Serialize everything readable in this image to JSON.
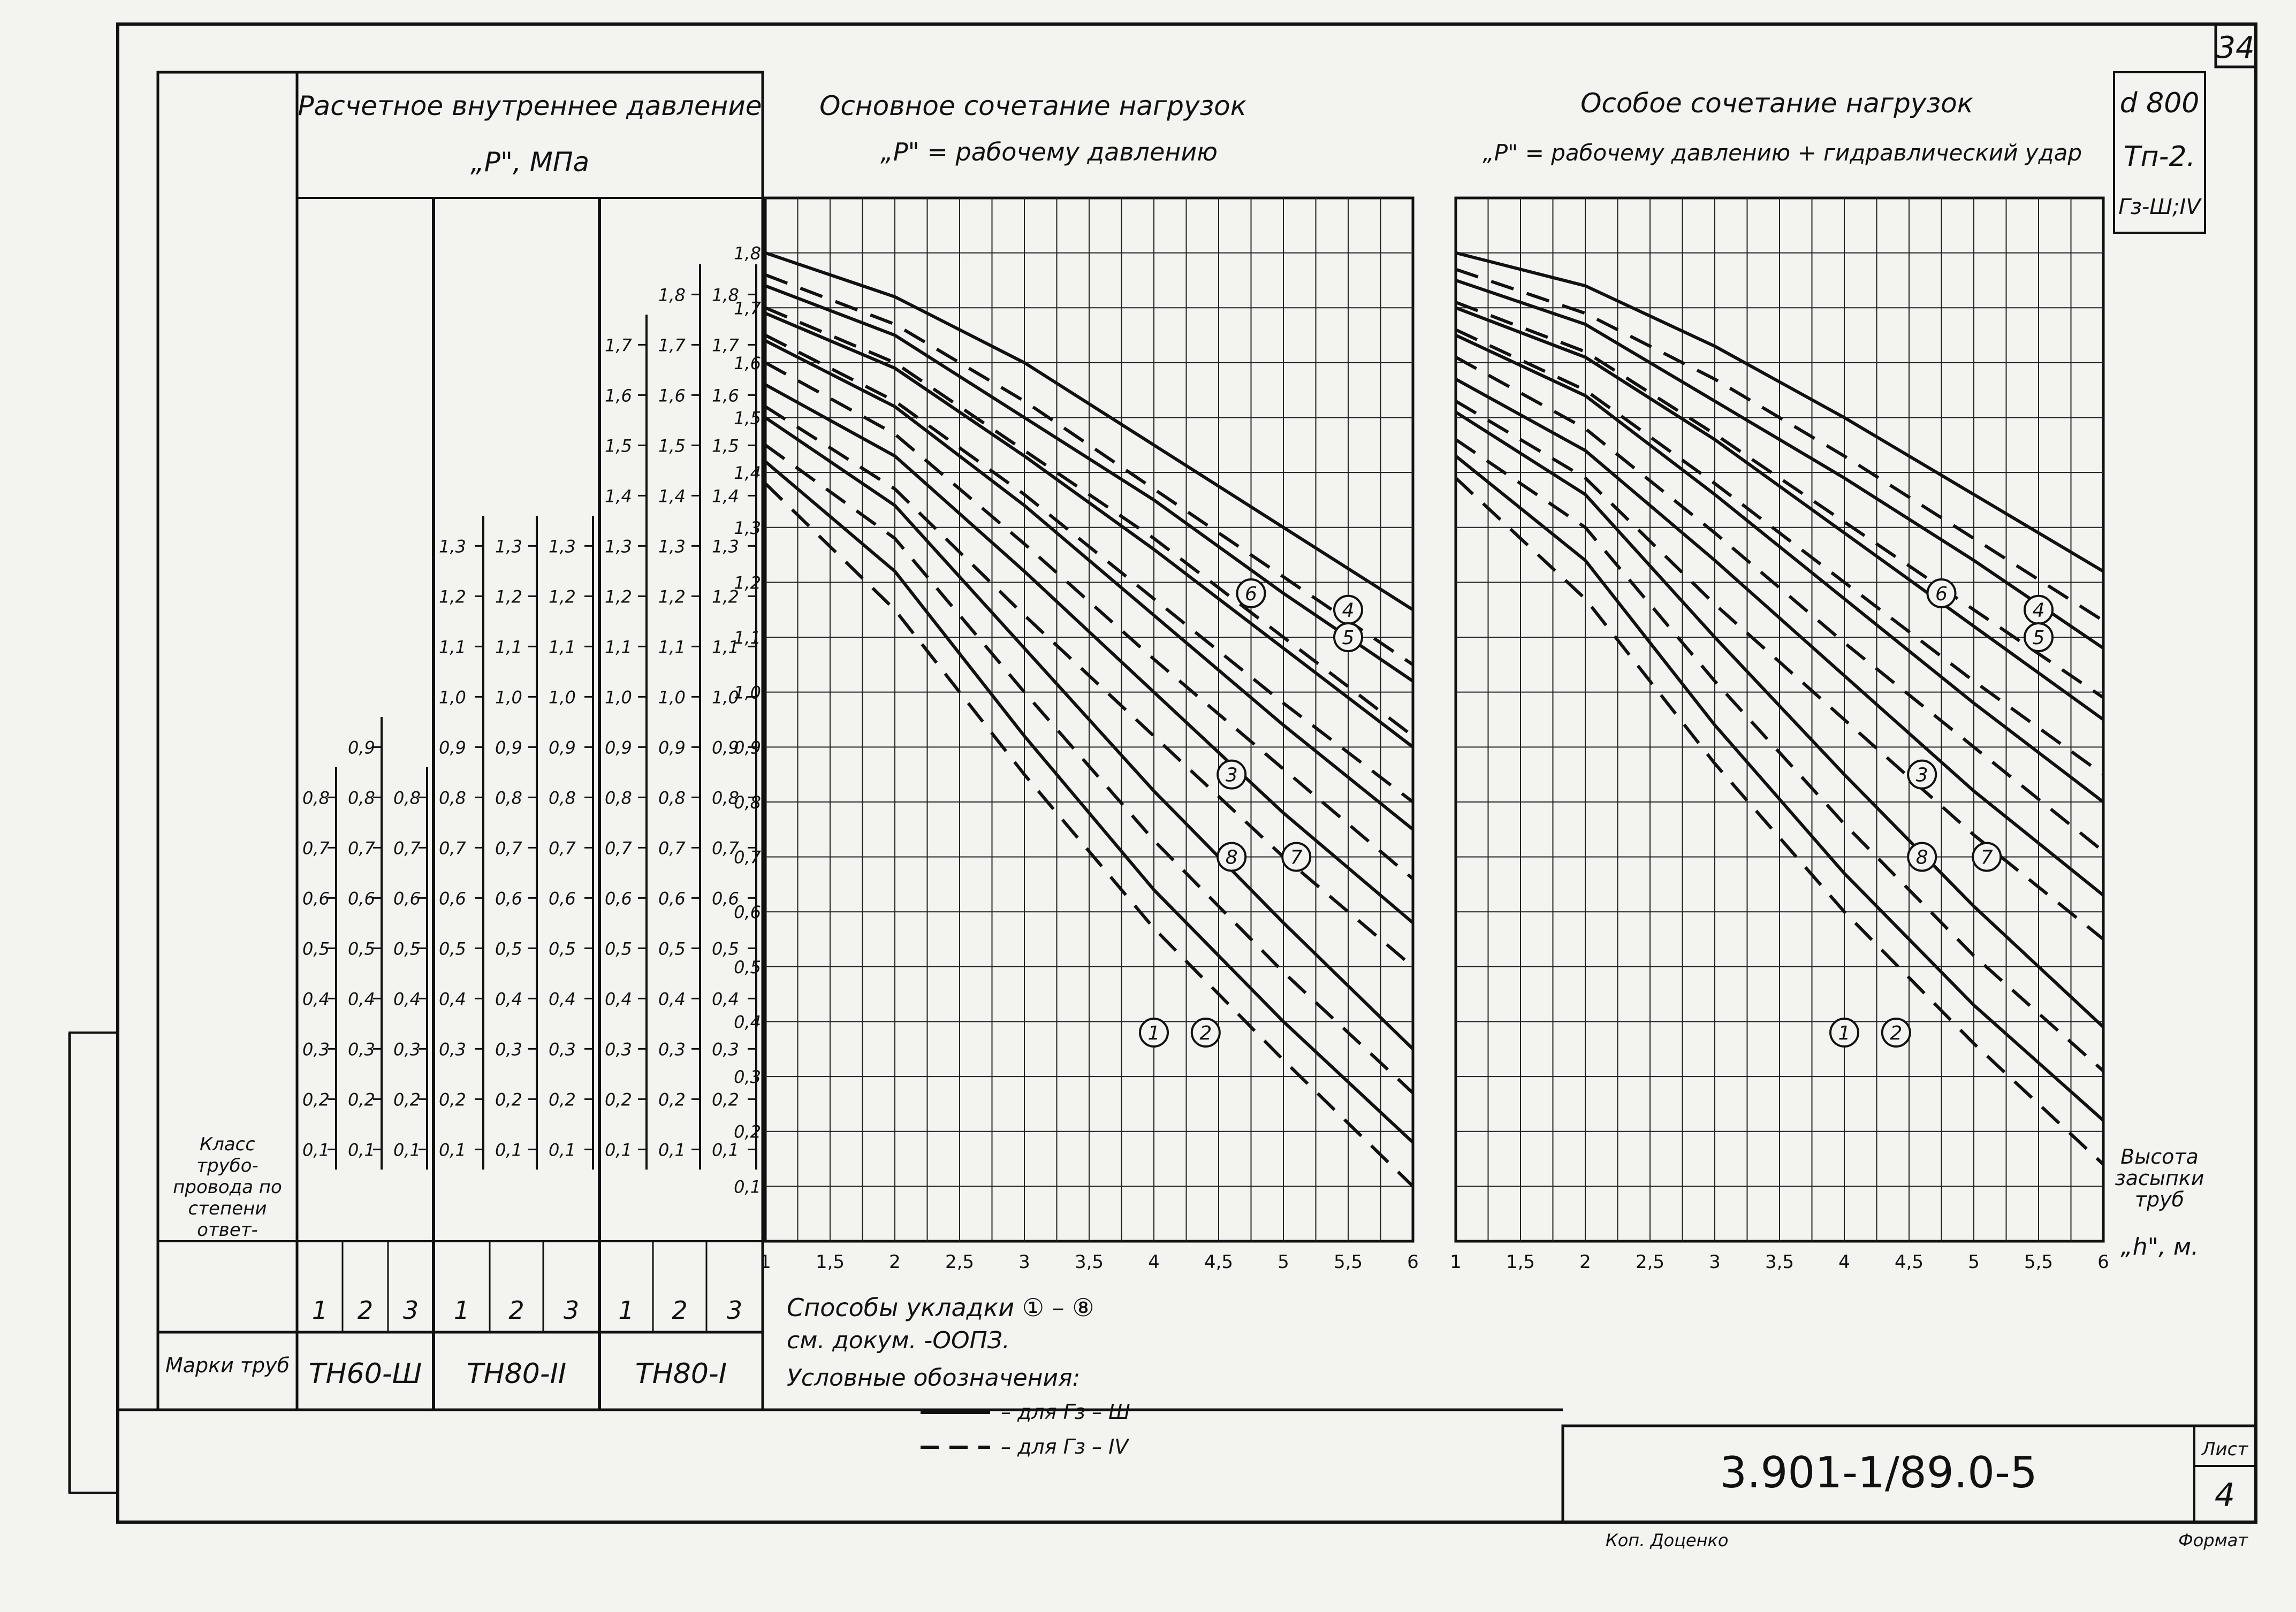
{
  "sheet_number": "34",
  "stamp": {
    "code": "3.901-1/89.0-5",
    "list_label": "Лист",
    "list_number": "4",
    "copy_label": "Коп. Доценко",
    "format_label": "Формат"
  },
  "marks": {
    "diameter": "d 800",
    "tip": "Тп-2.",
    "grunt": "Гз-Ш;IV"
  },
  "pressure_header": {
    "title": "Расчетное внутреннее давление",
    "subtitle": "„Р\", МПа"
  },
  "row_label_class": "Класс трубо-провода по степени ответ-ствен-ности",
  "row_label_marks": "Марки труб",
  "class_numbers": [
    "1",
    "2",
    "3",
    "1",
    "2",
    "3",
    "1",
    "2",
    "3"
  ],
  "pipe_marks": [
    "ТН60-Ш",
    "ТН80-II",
    "ТН80-I"
  ],
  "pressure_scales": [
    {
      "top": 0.8,
      "step": 0.1,
      "count": 8
    },
    {
      "top": 0.9,
      "step": 0.1,
      "count": 9
    },
    {
      "top": 0.8,
      "step": 0.1,
      "count": 8
    },
    {
      "top": 1.3,
      "step": 0.1,
      "count": 13
    },
    {
      "top": 1.3,
      "step": 0.1,
      "count": 13
    },
    {
      "top": 1.3,
      "step": 0.1,
      "count": 13
    },
    {
      "top": 1.7,
      "step": 0.1,
      "count": 17
    },
    {
      "top": 1.8,
      "step": 0.1,
      "count": 18
    },
    {
      "top": 1.8,
      "step": 0.1,
      "count": 18
    }
  ],
  "legend": {
    "line1": "Способы укладки ① – ⑧",
    "line2": "см. докум. -ООПЗ.",
    "line3": "Условные обозначения:",
    "solid_label": "– для Гз – Ш",
    "dashed_label": "– для Гз – IV"
  },
  "x_axis_label": "Высота засыпки труб „h\", м.",
  "chart_data": [
    {
      "type": "line",
      "title": "Основное сочетание нагрузок",
      "subtitle": "„Р\" = рабочему давлению",
      "xlabel": "Высота засыпки труб „h\", м.",
      "xlim": [
        1,
        6
      ],
      "ylim": [
        0,
        1.9
      ],
      "xticks": [
        "1",
        "1,5",
        "2",
        "2,5",
        "3",
        "3,5",
        "4",
        "4,5",
        "5",
        "5,5",
        "6"
      ],
      "yticks": [
        "0,1",
        "0,2",
        "0,3",
        "0,4",
        "0,5",
        "0,6",
        "0,7",
        "0,8",
        "0,9",
        "1,0",
        "1,1",
        "1,2",
        "1,3",
        "1,4",
        "1,5",
        "1,6",
        "1,7",
        "1,8"
      ],
      "series": [
        {
          "name": "8",
          "style": "solid",
          "x": [
            1,
            2,
            3,
            4,
            5,
            6
          ],
          "y": [
            1.8,
            1.72,
            1.6,
            1.45,
            1.3,
            1.15
          ]
        },
        {
          "name": "8",
          "style": "dashed",
          "x": [
            1,
            2,
            3,
            4,
            5,
            6
          ],
          "y": [
            1.76,
            1.67,
            1.53,
            1.37,
            1.21,
            1.05
          ]
        },
        {
          "name": "7",
          "style": "solid",
          "x": [
            1,
            2,
            3,
            4,
            5,
            6
          ],
          "y": [
            1.74,
            1.65,
            1.5,
            1.35,
            1.18,
            1.02
          ]
        },
        {
          "name": "7",
          "style": "dashed",
          "x": [
            1,
            2,
            3,
            4,
            5,
            6
          ],
          "y": [
            1.7,
            1.6,
            1.44,
            1.28,
            1.1,
            0.92
          ]
        },
        {
          "name": "6",
          "style": "solid",
          "x": [
            1,
            2,
            3,
            4,
            5,
            6
          ],
          "y": [
            1.69,
            1.59,
            1.43,
            1.26,
            1.08,
            0.9
          ]
        },
        {
          "name": "6",
          "style": "dashed",
          "x": [
            1,
            2,
            3,
            4,
            5,
            6
          ],
          "y": [
            1.65,
            1.53,
            1.36,
            1.17,
            0.98,
            0.8
          ]
        },
        {
          "name": "4",
          "style": "solid",
          "x": [
            1,
            2,
            3,
            4,
            5,
            6
          ],
          "y": [
            1.64,
            1.52,
            1.34,
            1.14,
            0.94,
            0.75
          ]
        },
        {
          "name": "5",
          "style": "dashed",
          "x": [
            1,
            2,
            3,
            4,
            5,
            6
          ],
          "y": [
            1.6,
            1.47,
            1.27,
            1.06,
            0.86,
            0.66
          ]
        },
        {
          "name": "3",
          "style": "solid",
          "x": [
            1,
            2,
            3,
            4,
            5,
            6
          ],
          "y": [
            1.56,
            1.43,
            1.22,
            1.0,
            0.78,
            0.58
          ]
        },
        {
          "name": "3",
          "style": "dashed",
          "x": [
            1,
            2,
            3,
            4,
            5,
            6
          ],
          "y": [
            1.52,
            1.37,
            1.14,
            0.92,
            0.7,
            0.5
          ]
        },
        {
          "name": "2",
          "style": "solid",
          "x": [
            1,
            2,
            3,
            4,
            5,
            6
          ],
          "y": [
            1.5,
            1.34,
            1.08,
            0.82,
            0.58,
            0.35
          ]
        },
        {
          "name": "2",
          "style": "dashed",
          "x": [
            1,
            2,
            3,
            4,
            5,
            6
          ],
          "y": [
            1.45,
            1.28,
            1.0,
            0.73,
            0.49,
            0.27
          ]
        },
        {
          "name": "1",
          "style": "solid",
          "x": [
            1,
            2,
            3,
            4,
            5,
            6
          ],
          "y": [
            1.42,
            1.22,
            0.92,
            0.64,
            0.4,
            0.18
          ]
        },
        {
          "name": "1",
          "style": "dashed",
          "x": [
            1,
            2,
            3,
            4,
            5,
            6
          ],
          "y": [
            1.38,
            1.15,
            0.85,
            0.57,
            0.33,
            0.1
          ]
        }
      ],
      "callouts": [
        "8",
        "7",
        "6",
        "4",
        "5",
        "3",
        "1",
        "2"
      ]
    },
    {
      "type": "line",
      "title": "Особое сочетание нагрузок",
      "subtitle": "„Р\" = рабочему давлению + гидравлический удар",
      "xlabel": "Высота засыпки труб „h\", м.",
      "xlim": [
        1,
        6
      ],
      "ylim": [
        0,
        1.9
      ],
      "xticks": [
        "1",
        "1,5",
        "2",
        "2,5",
        "3",
        "3,5",
        "4",
        "4,5",
        "5",
        "5,5",
        "6"
      ],
      "series": [
        {
          "name": "8",
          "style": "solid",
          "x": [
            1,
            2,
            3,
            4,
            5,
            6
          ],
          "y": [
            1.8,
            1.74,
            1.63,
            1.5,
            1.36,
            1.22
          ]
        },
        {
          "name": "8",
          "style": "dashed",
          "x": [
            1,
            2,
            3,
            4,
            5,
            6
          ],
          "y": [
            1.77,
            1.69,
            1.57,
            1.43,
            1.28,
            1.13
          ]
        },
        {
          "name": "7",
          "style": "solid",
          "x": [
            1,
            2,
            3,
            4,
            5,
            6
          ],
          "y": [
            1.75,
            1.67,
            1.53,
            1.39,
            1.24,
            1.08
          ]
        },
        {
          "name": "7",
          "style": "dashed",
          "x": [
            1,
            2,
            3,
            4,
            5,
            6
          ],
          "y": [
            1.71,
            1.62,
            1.47,
            1.31,
            1.15,
            0.99
          ]
        },
        {
          "name": "6",
          "style": "solid",
          "x": [
            1,
            2,
            3,
            4,
            5,
            6
          ],
          "y": [
            1.7,
            1.61,
            1.46,
            1.29,
            1.12,
            0.95
          ]
        },
        {
          "name": "6",
          "style": "dashed",
          "x": [
            1,
            2,
            3,
            4,
            5,
            6
          ],
          "y": [
            1.66,
            1.55,
            1.38,
            1.2,
            1.02,
            0.85
          ]
        },
        {
          "name": "4",
          "style": "solid",
          "x": [
            1,
            2,
            3,
            4,
            5,
            6
          ],
          "y": [
            1.65,
            1.54,
            1.36,
            1.17,
            0.98,
            0.8
          ]
        },
        {
          "name": "5",
          "style": "dashed",
          "x": [
            1,
            2,
            3,
            4,
            5,
            6
          ],
          "y": [
            1.61,
            1.48,
            1.29,
            1.09,
            0.9,
            0.71
          ]
        },
        {
          "name": "3",
          "style": "solid",
          "x": [
            1,
            2,
            3,
            4,
            5,
            6
          ],
          "y": [
            1.57,
            1.44,
            1.24,
            1.03,
            0.82,
            0.63
          ]
        },
        {
          "name": "3",
          "style": "dashed",
          "x": [
            1,
            2,
            3,
            4,
            5,
            6
          ],
          "y": [
            1.53,
            1.39,
            1.16,
            0.95,
            0.74,
            0.55
          ]
        },
        {
          "name": "2",
          "style": "solid",
          "x": [
            1,
            2,
            3,
            4,
            5,
            6
          ],
          "y": [
            1.51,
            1.36,
            1.1,
            0.85,
            0.61,
            0.39
          ]
        },
        {
          "name": "2",
          "style": "dashed",
          "x": [
            1,
            2,
            3,
            4,
            5,
            6
          ],
          "y": [
            1.46,
            1.3,
            1.02,
            0.76,
            0.52,
            0.31
          ]
        },
        {
          "name": "1",
          "style": "solid",
          "x": [
            1,
            2,
            3,
            4,
            5,
            6
          ],
          "y": [
            1.43,
            1.24,
            0.94,
            0.67,
            0.43,
            0.22
          ]
        },
        {
          "name": "1",
          "style": "dashed",
          "x": [
            1,
            2,
            3,
            4,
            5,
            6
          ],
          "y": [
            1.39,
            1.17,
            0.87,
            0.6,
            0.36,
            0.14
          ]
        }
      ],
      "callouts": [
        "8",
        "7",
        "6",
        "4",
        "5",
        "3",
        "1",
        "2"
      ]
    }
  ]
}
